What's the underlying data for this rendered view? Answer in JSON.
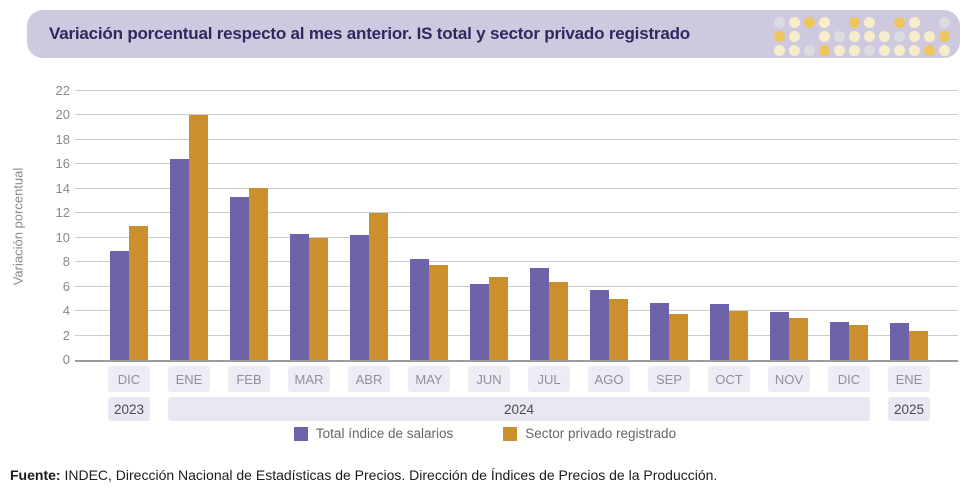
{
  "banner": {
    "title": "Variación porcentual respecto al mes anterior. IS total y sector privado registrado",
    "bg_color": "#cfc9df",
    "title_color": "#2e2960",
    "dot_palette": {
      "gold": "#ebc75e",
      "cream": "#f7edca",
      "gray": "#dbdbe2",
      "none": "transparent"
    },
    "dot_rows": [
      [
        "gray",
        "cream",
        "gold",
        "cream",
        "none",
        "gold",
        "cream",
        "none",
        "gold",
        "cream",
        "none",
        "gray"
      ],
      [
        "gold",
        "cream",
        "none",
        "cream",
        "gray",
        "cream",
        "cream",
        "cream",
        "gray",
        "cream",
        "cream",
        "gold"
      ],
      [
        "cream",
        "cream",
        "gray",
        "gold",
        "cream",
        "cream",
        "gray",
        "cream",
        "cream",
        "cream",
        "gold",
        "cream"
      ]
    ]
  },
  "chart_data": {
    "type": "bar",
    "title": "Variación porcentual respecto al mes anterior. IS total y sector privado registrado",
    "ylabel": "Variación porcentual",
    "xlabel": "",
    "ylim": [
      0,
      22
    ],
    "ytick_step": 2,
    "grid": true,
    "legend_position": "bottom",
    "categories": [
      "DIC",
      "ENE",
      "FEB",
      "MAR",
      "ABR",
      "MAY",
      "JUN",
      "JUL",
      "AGO",
      "SEP",
      "OCT",
      "NOV",
      "DIC",
      "ENE"
    ],
    "year_groups": [
      {
        "label": "2023",
        "start": 0,
        "end": 0
      },
      {
        "label": "2024",
        "start": 1,
        "end": 12
      },
      {
        "label": "2025",
        "start": 13,
        "end": 13
      }
    ],
    "series": [
      {
        "name": "Total índice de salarios",
        "color": "#6c63a9",
        "values": [
          8.9,
          16.4,
          13.3,
          10.3,
          10.2,
          8.3,
          6.2,
          7.5,
          5.7,
          4.7,
          4.6,
          3.9,
          3.1,
          3.0
        ]
      },
      {
        "name": "Sector privado registrado",
        "color": "#cb902e",
        "values": [
          11.0,
          20.0,
          14.1,
          10.0,
          12.0,
          7.8,
          6.8,
          6.4,
          5.0,
          3.8,
          4.0,
          3.4,
          2.9,
          2.4
        ]
      }
    ]
  },
  "axis": {
    "ylabel": "Variación porcentual"
  },
  "footer": {
    "label": "Fuente:",
    "text": " INDEC, Dirección Nacional de Estadísticas de Precios. Dirección de Índices de Precios de la Producción."
  }
}
